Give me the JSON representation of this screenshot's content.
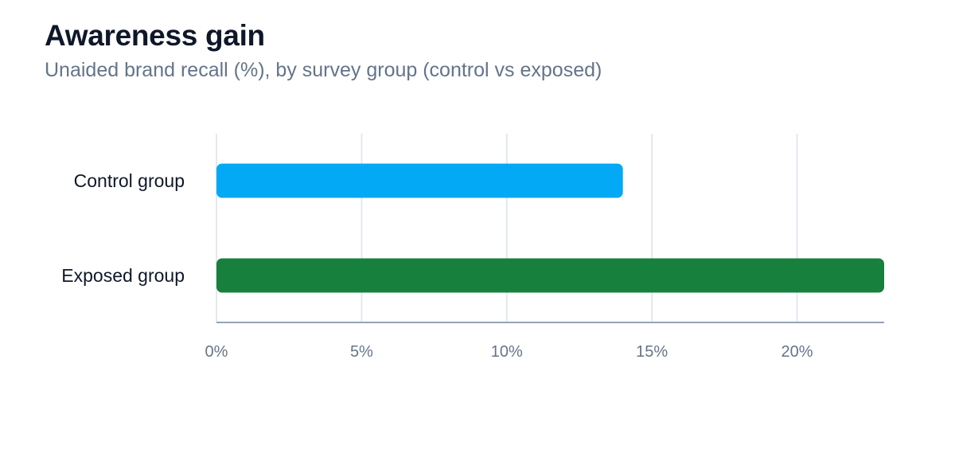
{
  "chart_data": {
    "type": "bar",
    "orientation": "horizontal",
    "title": "Awareness gain",
    "subtitle": "Unaided brand recall (%), by survey group (control vs exposed)",
    "categories": [
      "Control group",
      "Exposed group"
    ],
    "values": [
      14,
      23
    ],
    "xlim": [
      0,
      23
    ],
    "x_ticks": [
      0,
      5,
      10,
      15,
      20
    ],
    "x_tick_labels": [
      "0%",
      "5%",
      "10%",
      "15%",
      "20%"
    ],
    "grid": true,
    "legend": "none",
    "colors": [
      "#03a9f4",
      "#16803c"
    ]
  },
  "colors": {
    "gridline": "#e2e8f0",
    "axis": "#94a3b8"
  }
}
